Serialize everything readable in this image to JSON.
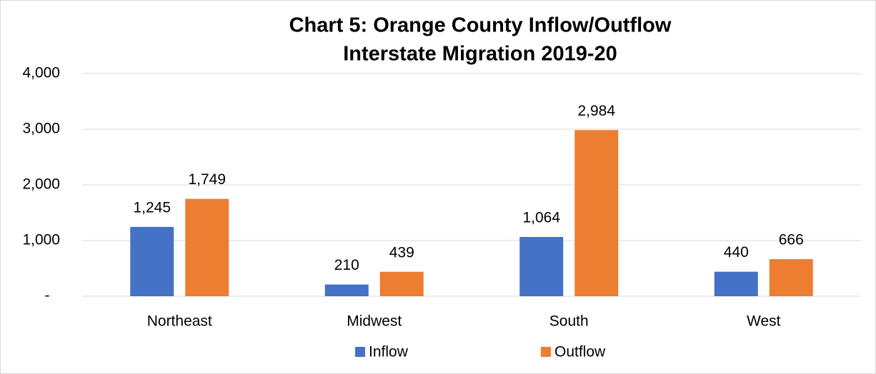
{
  "chart_data": {
    "type": "bar",
    "title": [
      "Chart 5: Orange County Inflow/Outflow",
      "Interstate Migration 2019-20"
    ],
    "categories": [
      "Northeast",
      "Midwest",
      "South",
      "West"
    ],
    "series": [
      {
        "name": "Inflow",
        "color": "#4472c4",
        "values": [
          1245,
          210,
          1064,
          440
        ],
        "value_labels": [
          "1,245",
          "210",
          "1,064",
          "440"
        ]
      },
      {
        "name": "Outflow",
        "color": "#ed7d31",
        "values": [
          1749,
          439,
          2984,
          666
        ],
        "value_labels": [
          "1,749",
          "439",
          "2,984",
          "666"
        ]
      }
    ],
    "ylim": [
      0,
      4000
    ],
    "yticks": [
      {
        "value": 0,
        "label": "-"
      },
      {
        "value": 1000,
        "label": "1,000"
      },
      {
        "value": 2000,
        "label": "2,000"
      },
      {
        "value": 3000,
        "label": "3,000"
      },
      {
        "value": 4000,
        "label": "4,000"
      }
    ],
    "grid": true,
    "legend": "bottom"
  }
}
